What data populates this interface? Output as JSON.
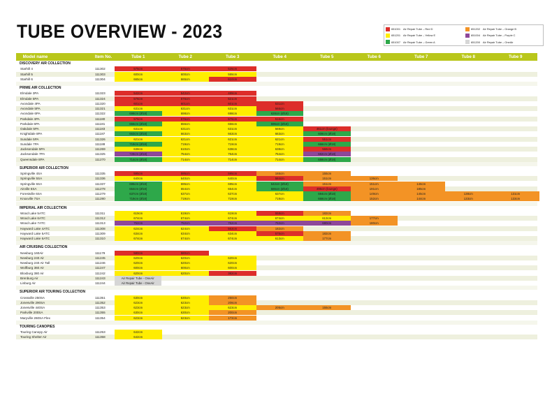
{
  "title": "TUBE OVERVIEW - 2023",
  "colors": {
    "R": "#dd2e2a",
    "Y": "#ffed00",
    "G": "#2ea84a",
    "O": "#f39325",
    "P": "#8e4799",
    "A": "#d6d6d6",
    "header": "#b9c71b",
    "alt": "#eef0de"
  },
  "legend": [
    {
      "swatch": "R",
      "code": "651001",
      "label": "Air Repair Tube – Red D"
    },
    {
      "swatch": "O",
      "code": "651202",
      "label": "Air Repair Tube – Orange B"
    },
    {
      "swatch": "Y",
      "code": "651201",
      "label": "Air Repair Tube – Yellow E"
    },
    {
      "swatch": "P",
      "code": "651004",
      "label": "Air Repair Tube – Purple C"
    },
    {
      "swatch": "G",
      "code": "651007",
      "label": "Air Repair Tube – Green A"
    },
    {
      "swatch": "A",
      "code": "651200",
      "label": "Air Repair Tube – OneAir"
    }
  ],
  "header": {
    "model": "Model name",
    "item": "Item No.",
    "tubes": [
      "Tube 1",
      "Tube 2",
      "Tube 3",
      "Tube 4",
      "Tube 5",
      "Tube 6",
      "Tube 7",
      "Tube 8",
      "Tube 9"
    ]
  },
  "rows": [
    {
      "cat": "DISCOVERY AIR COLLECTION"
    },
    {
      "name": "Starhill 4",
      "item": "111302",
      "cells": [
        [
          "R",
          "575cm"
        ],
        [
          "R",
          "575cm"
        ],
        [
          "R",
          "525cm"
        ]
      ]
    },
    {
      "name": "Starhill 5",
      "item": "111303",
      "cells": [
        [
          "Y",
          "600cm"
        ],
        [
          "Y",
          "600cm"
        ],
        [
          "Y",
          "555cm"
        ]
      ]
    },
    {
      "name": "Starhill 6",
      "item": "111304",
      "cells": [
        [
          "Y",
          "665cm"
        ],
        [
          "Y",
          "665cm"
        ],
        [
          "R",
          "610cm"
        ]
      ]
    },
    {
      "gap": true
    },
    {
      "cat": "PRIME AIR COLLECTION"
    },
    {
      "name": "Elmdale 3PA",
      "item": "111323",
      "cells": [
        [
          "R",
          "542cm"
        ],
        [
          "R",
          "542cm"
        ],
        [
          "R",
          "489cm"
        ]
      ]
    },
    {
      "name": "Elmdale 5PA",
      "item": "111324",
      "cells": [
        [
          "R",
          "576cm"
        ],
        [
          "R",
          "576cm"
        ],
        [
          "R",
          "521cm"
        ]
      ]
    },
    {
      "name": "Avondale 4PA",
      "item": "111320",
      "cells": [
        [
          "R",
          "601cm"
        ],
        [
          "R",
          "601cm"
        ],
        [
          "R",
          "601cm"
        ],
        [
          "R",
          "531cm"
        ]
      ]
    },
    {
      "name": "Avondale 5PA",
      "item": "111321",
      "cells": [
        [
          "Y",
          "631cm"
        ],
        [
          "Y",
          "631cm"
        ],
        [
          "Y",
          "631cm"
        ],
        [
          "R",
          "566cm"
        ]
      ]
    },
    {
      "name": "Avondale 6PA",
      "item": "111322",
      "cells": [
        [
          "G",
          "698cm (Ø18)"
        ],
        [
          "Y",
          "698cm"
        ],
        [
          "Y",
          "698cm"
        ],
        [
          "G",
          "628cm (Ø18)"
        ]
      ]
    },
    {
      "name": "Parkdale 4PA",
      "item": "111180",
      "cells": [
        [
          "R",
          "576cm"
        ],
        [
          "R",
          "576cm"
        ],
        [
          "R",
          "576cm"
        ],
        [
          "R",
          "516cm"
        ]
      ]
    },
    {
      "name": "Parkdale 6PA",
      "item": "111181",
      "cells": [
        [
          "G",
          "656cm (Ø18)"
        ],
        [
          "Y",
          "656cm"
        ],
        [
          "Y",
          "656cm"
        ],
        [
          "G",
          "596cm (Ø18)"
        ]
      ]
    },
    {
      "name": "Oakdale 5PA",
      "item": "111183",
      "cells": [
        [
          "Y",
          "631cm"
        ],
        [
          "Y",
          "631cm"
        ],
        [
          "Y",
          "631cm"
        ],
        [
          "Y",
          "569cm"
        ],
        [
          "R",
          "461cm (lounge)"
        ]
      ]
    },
    {
      "name": "Knightdale 8PA",
      "item": "111187",
      "cells": [
        [
          "G",
          "663cm (Ø18)"
        ],
        [
          "Y",
          "663cm"
        ],
        [
          "Y",
          "663cm"
        ],
        [
          "Y",
          "663cm"
        ],
        [
          "G",
          "608cm (Ø18)"
        ]
      ]
    },
    {
      "name": "Sundale 5PA",
      "item": "111326",
      "cells": [
        [
          "Y",
          "621cm"
        ],
        [
          "Y",
          "621cm"
        ],
        [
          "Y",
          "621cm"
        ],
        [
          "Y",
          "621cm"
        ],
        [
          "R",
          "551cm"
        ]
      ]
    },
    {
      "name": "Sundale 7PA",
      "item": "111188",
      "cells": [
        [
          "G",
          "719cm (Ø18)"
        ],
        [
          "Y",
          "719cm"
        ],
        [
          "Y",
          "719cm"
        ],
        [
          "Y",
          "719cm"
        ],
        [
          "G",
          "666cm (Ø18)"
        ]
      ]
    },
    {
      "name": "Jacksondale 5PA",
      "item": "111269",
      "cells": [
        [
          "Y",
          "638cm"
        ],
        [
          "Y",
          "610cm"
        ],
        [
          "Y",
          "638cm"
        ],
        [
          "Y",
          "638cm"
        ],
        [
          "R",
          "566cm"
        ]
      ]
    },
    {
      "name": "Jacksondale 7PA",
      "item": "111325",
      "cells": [
        [
          "P",
          "728cm (Ø18)"
        ],
        [
          "Y",
          "754cm"
        ],
        [
          "Y",
          "754cm"
        ],
        [
          "Y",
          "754cm"
        ],
        [
          "P",
          "682cm (Ø18)"
        ]
      ]
    },
    {
      "name": "Queensdale 8PA",
      "item": "111270",
      "cells": [
        [
          "G",
          "714cm (Ø18)"
        ],
        [
          "Y",
          "714cm"
        ],
        [
          "Y",
          "714cm"
        ],
        [
          "Y",
          "714cm"
        ],
        [
          "G",
          "658cm (Ø18)"
        ]
      ]
    },
    {
      "gap": true
    },
    {
      "cat": "SUPERIOR AIR COLLECTION"
    },
    {
      "name": "Springville 4SA",
      "item": "111335",
      "cells": [
        [
          "R",
          "595cm"
        ],
        [
          "R",
          "595cm"
        ],
        [
          "R",
          "595cm"
        ],
        [
          "O",
          "165cm"
        ],
        [
          "O",
          "155cm"
        ]
      ]
    },
    {
      "name": "Springville 5SA",
      "item": "111336",
      "cells": [
        [
          "Y",
          "640cm"
        ],
        [
          "Y",
          "640cm"
        ],
        [
          "Y",
          "640cm"
        ],
        [
          "R",
          "584cm"
        ],
        [
          "O",
          "151cm"
        ],
        [
          "O",
          "136cm"
        ]
      ]
    },
    {
      "name": "Springville 6SA",
      "item": "111337",
      "cells": [
        [
          "G",
          "695cm (Ø18)"
        ],
        [
          "Y",
          "695cm"
        ],
        [
          "Y",
          "695cm"
        ],
        [
          "G",
          "642cm (Ø18)"
        ],
        [
          "O",
          "151cm"
        ],
        [
          "O",
          "151cm"
        ],
        [
          "O",
          "146cm"
        ]
      ]
    },
    {
      "name": "Airville 6SA",
      "item": "111278",
      "cells": [
        [
          "G",
          "654cm (Ø18)"
        ],
        [
          "Y",
          "654cm"
        ],
        [
          "Y",
          "654cm"
        ],
        [
          "G",
          "586cm (Ø18)"
        ],
        [
          "R",
          "495cm (lounge)"
        ],
        [
          "O",
          "191cm"
        ],
        [
          "O",
          "185cm"
        ]
      ]
    },
    {
      "name": "Forestville 6SA",
      "item": "111279",
      "cells": [
        [
          "G",
          "637cm (Ø18)"
        ],
        [
          "Y",
          "637cm"
        ],
        [
          "Y",
          "637cm"
        ],
        [
          "Y",
          "637cm"
        ],
        [
          "G",
          "594cm (Ø18)"
        ],
        [
          "O",
          "149cm"
        ],
        [
          "O",
          "145cm"
        ],
        [
          "O",
          "138cm"
        ],
        [
          "O",
          "131cm"
        ]
      ]
    },
    {
      "name": "Knoxville 7SA",
      "item": "111280",
      "cells": [
        [
          "G",
          "719cm (Ø18)"
        ],
        [
          "Y",
          "719cm"
        ],
        [
          "Y",
          "719cm"
        ],
        [
          "Y",
          "719cm"
        ],
        [
          "G",
          "668cm (Ø18)"
        ],
        [
          "O",
          "152cm"
        ],
        [
          "O",
          "144cm"
        ],
        [
          "O",
          "133cm"
        ],
        [
          "O",
          "133cm"
        ]
      ]
    },
    {
      "gap": true
    },
    {
      "cat": "IMPERIAL AIR COLLECTION"
    },
    {
      "name": "Wood Lake 5ATC",
      "item": "111311",
      "cells": [
        [
          "Y",
          "619cm"
        ],
        [
          "Y",
          "619cm"
        ],
        [
          "Y",
          "619cm"
        ],
        [
          "R",
          "558cm"
        ],
        [
          "O",
          "182cm"
        ]
      ]
    },
    {
      "name": "Wood Lake 6ATC",
      "item": "111312",
      "cells": [
        [
          "Y",
          "674cm"
        ],
        [
          "Y",
          "674cm"
        ],
        [
          "Y",
          "674cm"
        ],
        [
          "Y",
          "674cm"
        ],
        [
          "Y",
          "613cm"
        ],
        [
          "O",
          "177cm"
        ]
      ]
    },
    {
      "name": "Wood Lake 7ATC",
      "item": "111313",
      "cells": [
        [
          "P",
          "752cm"
        ],
        [
          "P",
          "752cm"
        ],
        [
          "P",
          "752cm"
        ],
        [
          "P",
          "752cm"
        ],
        [
          "P",
          "680cm"
        ],
        [
          "O",
          "180cm"
        ]
      ]
    },
    {
      "name": "Hayward Lake 4ATC",
      "item": "111308",
      "cells": [
        [
          "Y",
          "624cm"
        ],
        [
          "Y",
          "624cm"
        ],
        [
          "R",
          "563cm"
        ],
        [
          "O",
          "182cm"
        ]
      ]
    },
    {
      "name": "Hayward Lake 5ATC",
      "item": "111309",
      "cells": [
        [
          "Y",
          "634cm"
        ],
        [
          "Y",
          "634cm"
        ],
        [
          "Y",
          "634cm"
        ],
        [
          "R",
          "575cm"
        ],
        [
          "O",
          "182cm"
        ]
      ]
    },
    {
      "name": "Hayward Lake 6ATC",
      "item": "111310",
      "cells": [
        [
          "Y",
          "674cm"
        ],
        [
          "Y",
          "674cm"
        ],
        [
          "Y",
          "674cm"
        ],
        [
          "Y",
          "613cm"
        ],
        [
          "O",
          "177cm"
        ]
      ]
    },
    {
      "gap": true
    },
    {
      "cat": "AIR CRUISING COLLECTION"
    },
    {
      "name": "Newburg 160Air",
      "item": "111179",
      "cells": [
        [
          "R",
          "580cm"
        ],
        [
          "R",
          "580cm"
        ]
      ]
    },
    {
      "name": "Newburg 240 Air",
      "item": "111245",
      "cells": [
        [
          "Y",
          "620cm"
        ],
        [
          "Y",
          "620cm"
        ],
        [
          "Y",
          "620cm"
        ]
      ]
    },
    {
      "name": "Newburg 240 Air Tall",
      "item": "111246",
      "cells": [
        [
          "Y",
          "620cm"
        ],
        [
          "Y",
          "620cm"
        ],
        [
          "Y",
          "620cm"
        ]
      ]
    },
    {
      "name": "Wolfburg 360 Air",
      "item": "111247",
      "cells": [
        [
          "Y",
          "600cm"
        ],
        [
          "Y",
          "600cm"
        ],
        [
          "Y",
          "600cm"
        ]
      ]
    },
    {
      "name": "Bloxburg 380 Air",
      "item": "111242",
      "cells": [
        [
          "Y",
          "620cm"
        ],
        [
          "Y",
          "620cm"
        ],
        [
          "R",
          "382cm"
        ]
      ]
    },
    {
      "name": "Brenburg Air",
      "item": "111243",
      "cells": [
        [
          "A",
          "Air Repair Tube - OneAir"
        ]
      ]
    },
    {
      "name": "Linburg Air",
      "item": "111244",
      "cells": [
        [
          "A",
          "Air Repair Tube - OneAir"
        ]
      ]
    },
    {
      "gap": true
    },
    {
      "cat": "SUPERIOR AIR TOURING COLLECTION"
    },
    {
      "name": "Crossville 250SA",
      "item": "111351",
      "cells": [
        [
          "Y",
          "630cm"
        ],
        [
          "Y",
          "630cm"
        ],
        [
          "O",
          "250cm"
        ]
      ]
    },
    {
      "name": "Jonesville 290SA",
      "item": "111352",
      "cells": [
        [
          "Y",
          "623cm"
        ],
        [
          "Y",
          "623cm"
        ],
        [
          "O",
          "206cm"
        ]
      ]
    },
    {
      "name": "Jonesville 440SA",
      "item": "111353",
      "cells": [
        [
          "Y",
          "623cm"
        ],
        [
          "Y",
          "623cm"
        ],
        [
          "Y",
          "623cm"
        ],
        [
          "O",
          "205cm"
        ],
        [
          "O",
          "155cm"
        ]
      ]
    },
    {
      "name": "Parkville 200SA",
      "item": "111355",
      "cells": [
        [
          "Y",
          "630cm"
        ],
        [
          "Y",
          "630cm"
        ],
        [
          "O",
          "200cm"
        ]
      ]
    },
    {
      "name": "Maryville 260SA Flex",
      "item": "111354",
      "cells": [
        [
          "Y",
          "623cm"
        ],
        [
          "Y",
          "623cm"
        ],
        [
          "O",
          "172cm"
        ]
      ]
    },
    {
      "gap": true
    },
    {
      "cat": "TOURING CANOPIES"
    },
    {
      "name": "Touring Canopy Air",
      "item": "111253",
      "cells": [
        [
          "Y",
          "642cm"
        ]
      ]
    },
    {
      "name": "Touring Shelter Air",
      "item": "111358",
      "cells": [
        [
          "Y",
          "642cm"
        ]
      ]
    }
  ]
}
